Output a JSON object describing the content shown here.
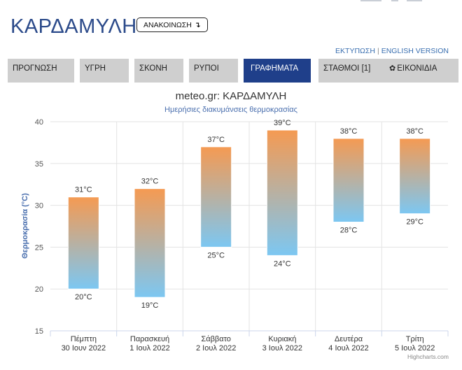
{
  "header": {
    "title": "ΚΑΡΔΑΜΥΛΗ",
    "announce_label": "ΑΝΑΚΟΙΝΩΣΗ",
    "announce_icon": "down-arrow-icon"
  },
  "links": {
    "print": "ΕΚΤΥΠΩΣΗ",
    "separator": "|",
    "english": "ENGLISH VERSION"
  },
  "tabs": [
    {
      "label": "ΠΡΟΓΝΩΣΗ"
    },
    {
      "label": "ΥΓΡΗ"
    },
    {
      "label": "ΣΚΟΝΗ"
    },
    {
      "label": "ΡΥΠΟΙ"
    },
    {
      "label": "ΓΡΑΦΗΜΑΤΑ",
      "active": true
    },
    {
      "label": "ΣΤΑΘΜΟΙ [1]"
    },
    {
      "label": "ΕΙΚΟΝΙΔΙΑ",
      "icon": "gear-icon"
    }
  ],
  "colors": {
    "accent": "#1f3f8a",
    "title": "#2b4a8a",
    "bar_top": "#f59a52",
    "bar_bottom": "#7cc7f2"
  },
  "chart_data": {
    "type": "bar",
    "subtype": "columnrange",
    "title": "meteo.gr: ΚΑΡΔΑΜΥΛΗ",
    "subtitle": "Ημερήσιες διακυμάνσεις θερμοκρασίας",
    "ylabel": "Θερμοκρασία (°C)",
    "ylim": [
      15,
      40
    ],
    "yticks": [
      15,
      20,
      25,
      30,
      35,
      40
    ],
    "grid": true,
    "unit_suffix": "°C",
    "categories": [
      [
        "Πέμπτη",
        "30 Ιουν 2022"
      ],
      [
        "Παρασκευή",
        "1 Ιουλ 2022"
      ],
      [
        "Σάββατο",
        "2 Ιουλ 2022"
      ],
      [
        "Κυριακή",
        "3 Ιουλ 2022"
      ],
      [
        "Δευτέρα",
        "4 Ιουλ 2022"
      ],
      [
        "Τρίτη",
        "5 Ιουλ 2022"
      ]
    ],
    "series": [
      {
        "low": [
          20,
          19,
          25,
          24,
          28,
          29
        ],
        "high": [
          31,
          32,
          37,
          39,
          38,
          38
        ]
      }
    ],
    "credits": "Highcharts.com"
  }
}
